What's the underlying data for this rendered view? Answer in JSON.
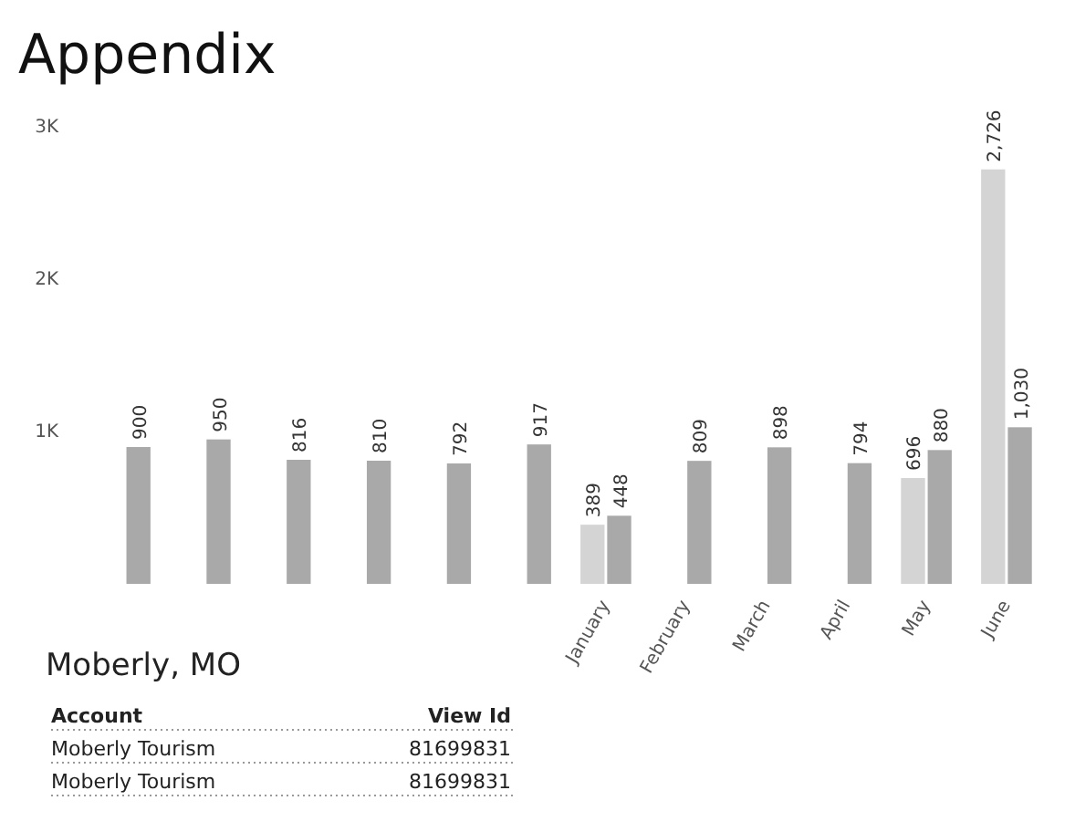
{
  "chart_data": {
    "type": "bar",
    "title": "Appendix",
    "subtitle": "Moberly, MO",
    "categories": [
      null,
      null,
      null,
      null,
      null,
      null,
      "January",
      "February",
      "March",
      "April",
      "May",
      "June"
    ],
    "series": [
      {
        "color": "#d4d4d4",
        "values": [
          null,
          null,
          null,
          null,
          null,
          null,
          389,
          null,
          null,
          null,
          696,
          2726
        ],
        "value_labels": [
          null,
          null,
          null,
          null,
          null,
          null,
          "389",
          null,
          null,
          null,
          "696",
          "2,726"
        ]
      },
      {
        "color": "#a9a9a9",
        "values": [
          900,
          950,
          816,
          810,
          792,
          917,
          448,
          809,
          898,
          794,
          880,
          1030
        ],
        "value_labels": [
          "900",
          "950",
          "816",
          "810",
          "792",
          "917",
          "448",
          "809",
          "898",
          "794",
          "880",
          "1,030"
        ]
      }
    ],
    "ylim": [
      0,
      3000
    ],
    "yticks": [
      {
        "value": 1000,
        "label": "1K"
      },
      {
        "value": 2000,
        "label": "2K"
      },
      {
        "value": 3000,
        "label": "3K"
      }
    ],
    "annotations": [
      "Account",
      "View Id",
      "Moberly Tourism",
      "81699831",
      "Moberly Tourism",
      "81699831"
    ]
  }
}
